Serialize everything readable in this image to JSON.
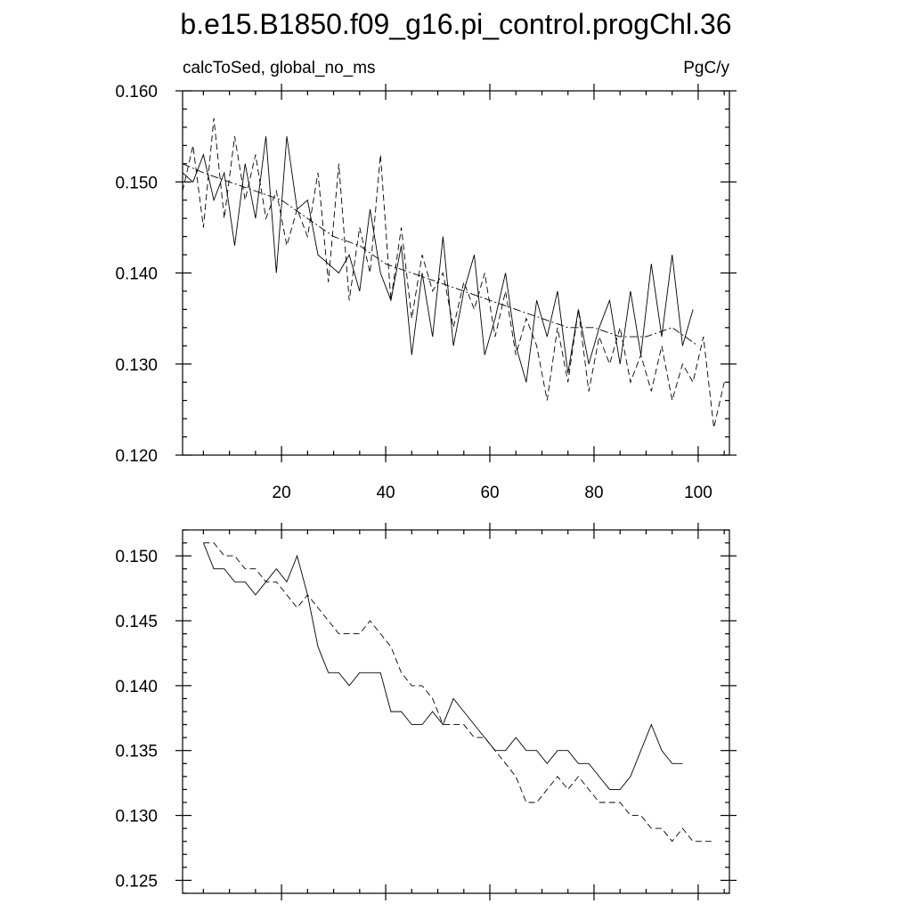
{
  "title": "b.e15.B1850.f09_g16.pi_control.progChl.36",
  "chart_data": [
    {
      "type": "line",
      "left_label": "calcToSed, global_no_ms",
      "right_label": "PgC/y",
      "xlim": [
        1,
        106
      ],
      "ylim": [
        0.12,
        0.16
      ],
      "x_ticks": [
        20,
        40,
        60,
        80,
        100
      ],
      "y_ticks": [
        "0.160",
        "0.150",
        "0.140",
        "0.130",
        "0.120"
      ],
      "grid": false,
      "series": [
        {
          "dash": "solid",
          "x": [
            1,
            3,
            5,
            7,
            9,
            11,
            13,
            15,
            17,
            19,
            21,
            23,
            25,
            27,
            29,
            31,
            33,
            35,
            37,
            39,
            41,
            43,
            45,
            47,
            49,
            51,
            53,
            55,
            57,
            59,
            61,
            63,
            65,
            67,
            69,
            71,
            73,
            75,
            77,
            79,
            81,
            83,
            85,
            87,
            89,
            91,
            93,
            95,
            97,
            99
          ],
          "values": [
            0.151,
            0.15,
            0.153,
            0.148,
            0.151,
            0.143,
            0.152,
            0.146,
            0.155,
            0.14,
            0.155,
            0.147,
            0.148,
            0.142,
            0.141,
            0.14,
            0.142,
            0.138,
            0.147,
            0.14,
            0.137,
            0.143,
            0.131,
            0.14,
            0.133,
            0.144,
            0.132,
            0.138,
            0.142,
            0.131,
            0.135,
            0.14,
            0.132,
            0.128,
            0.137,
            0.133,
            0.138,
            0.129,
            0.136,
            0.13,
            0.134,
            0.137,
            0.13,
            0.138,
            0.131,
            0.141,
            0.133,
            0.142,
            0.132,
            0.136
          ]
        },
        {
          "dash": "dashed",
          "x": [
            1,
            3,
            5,
            7,
            9,
            11,
            13,
            15,
            17,
            19,
            21,
            23,
            25,
            27,
            29,
            31,
            33,
            35,
            37,
            39,
            41,
            43,
            45,
            47,
            49,
            51,
            53,
            55,
            57,
            59,
            61,
            63,
            65,
            67,
            69,
            71,
            73,
            75,
            77,
            79,
            81,
            83,
            85,
            87,
            89,
            91,
            93,
            95,
            97,
            99,
            101,
            103,
            105
          ],
          "values": [
            0.149,
            0.154,
            0.145,
            0.157,
            0.146,
            0.155,
            0.148,
            0.153,
            0.146,
            0.149,
            0.143,
            0.147,
            0.144,
            0.151,
            0.139,
            0.152,
            0.137,
            0.145,
            0.14,
            0.153,
            0.137,
            0.145,
            0.135,
            0.142,
            0.138,
            0.14,
            0.134,
            0.139,
            0.136,
            0.14,
            0.133,
            0.138,
            0.131,
            0.135,
            0.132,
            0.126,
            0.134,
            0.128,
            0.136,
            0.127,
            0.133,
            0.13,
            0.134,
            0.128,
            0.131,
            0.127,
            0.132,
            0.126,
            0.13,
            0.128,
            0.133,
            0.123,
            0.128
          ]
        },
        {
          "dash": "dashdot",
          "x": [
            1,
            5,
            10,
            15,
            20,
            25,
            30,
            35,
            40,
            45,
            50,
            55,
            60,
            65,
            70,
            75,
            80,
            85,
            90,
            95,
            100
          ],
          "values": [
            0.152,
            0.151,
            0.15,
            0.149,
            0.148,
            0.146,
            0.144,
            0.143,
            0.141,
            0.14,
            0.139,
            0.138,
            0.137,
            0.136,
            0.135,
            0.134,
            0.134,
            0.133,
            0.133,
            0.134,
            0.132
          ]
        }
      ]
    },
    {
      "type": "line",
      "xlim": [
        1,
        106
      ],
      "ylim": [
        0.124,
        0.152
      ],
      "y_ticks": [
        "0.150",
        "0.145",
        "0.140",
        "0.135",
        "0.130",
        "0.125"
      ],
      "grid": false,
      "series": [
        {
          "dash": "solid",
          "x": [
            5,
            7,
            9,
            11,
            13,
            15,
            17,
            19,
            21,
            23,
            25,
            27,
            29,
            31,
            33,
            35,
            37,
            39,
            41,
            43,
            45,
            47,
            49,
            51,
            53,
            55,
            57,
            59,
            61,
            63,
            65,
            67,
            69,
            71,
            73,
            75,
            77,
            79,
            81,
            83,
            85,
            87,
            89,
            91,
            93,
            95,
            97
          ],
          "values": [
            0.151,
            0.149,
            0.149,
            0.148,
            0.148,
            0.147,
            0.148,
            0.149,
            0.148,
            0.15,
            0.147,
            0.143,
            0.141,
            0.141,
            0.14,
            0.141,
            0.141,
            0.141,
            0.138,
            0.138,
            0.137,
            0.137,
            0.138,
            0.137,
            0.139,
            0.138,
            0.137,
            0.136,
            0.135,
            0.135,
            0.136,
            0.135,
            0.135,
            0.134,
            0.135,
            0.135,
            0.134,
            0.134,
            0.133,
            0.132,
            0.132,
            0.133,
            0.135,
            0.137,
            0.135,
            0.134,
            0.134
          ]
        },
        {
          "dash": "dashed",
          "x": [
            5,
            7,
            9,
            11,
            13,
            15,
            17,
            19,
            21,
            23,
            25,
            27,
            29,
            31,
            33,
            35,
            37,
            39,
            41,
            43,
            45,
            47,
            49,
            51,
            53,
            55,
            57,
            59,
            61,
            63,
            65,
            67,
            69,
            71,
            73,
            75,
            77,
            79,
            81,
            83,
            85,
            87,
            89,
            91,
            93,
            95,
            97,
            99,
            101,
            103
          ],
          "values": [
            0.151,
            0.151,
            0.15,
            0.15,
            0.149,
            0.149,
            0.148,
            0.148,
            0.147,
            0.146,
            0.147,
            0.146,
            0.145,
            0.144,
            0.144,
            0.144,
            0.145,
            0.144,
            0.143,
            0.141,
            0.14,
            0.14,
            0.139,
            0.137,
            0.137,
            0.137,
            0.136,
            0.136,
            0.135,
            0.134,
            0.133,
            0.131,
            0.131,
            0.132,
            0.133,
            0.132,
            0.133,
            0.132,
            0.131,
            0.131,
            0.131,
            0.13,
            0.13,
            0.129,
            0.129,
            0.128,
            0.129,
            0.128,
            0.128,
            0.128
          ]
        }
      ]
    }
  ]
}
